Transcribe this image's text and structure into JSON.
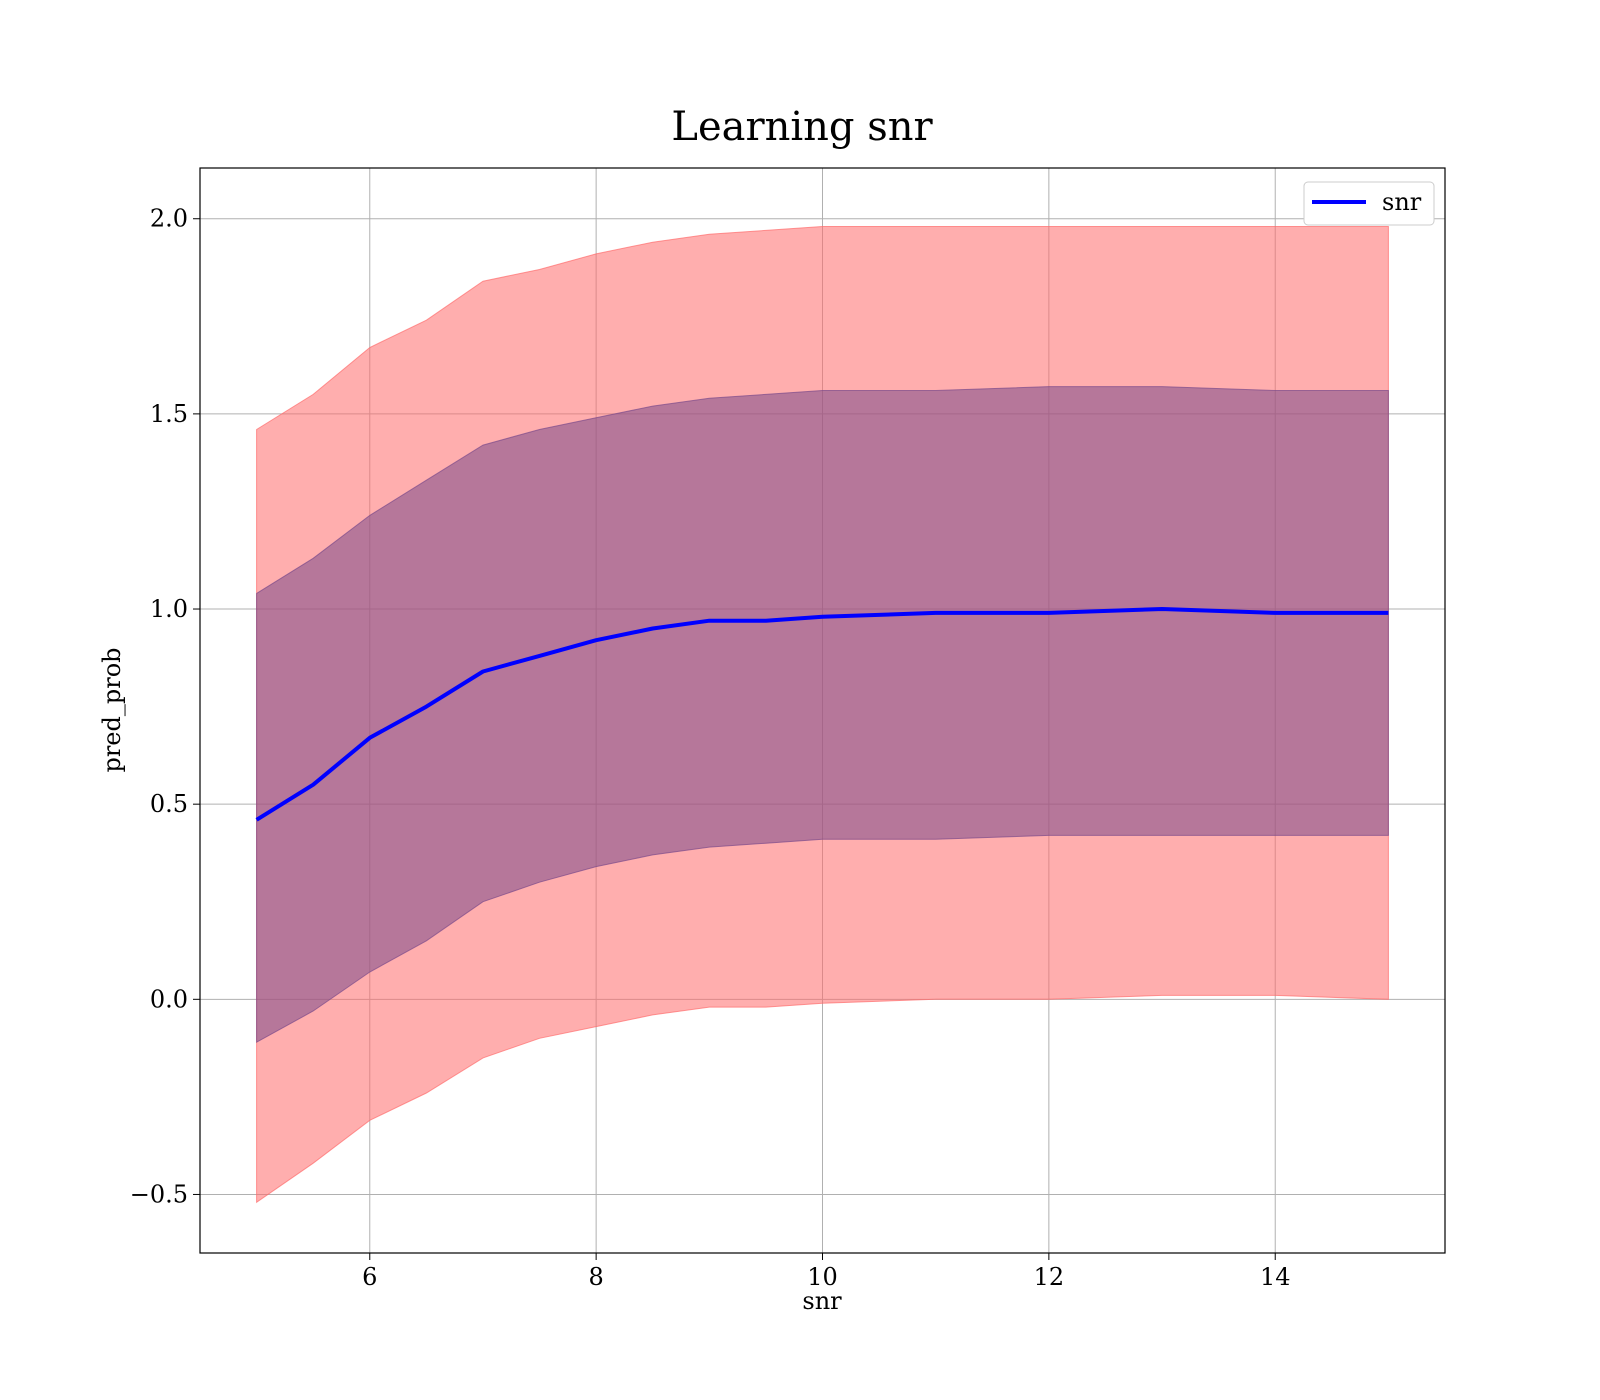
{
  "chart_data": {
    "type": "line",
    "title": "Learning snr",
    "xlabel": "snr",
    "ylabel": "pred_prob",
    "xlim": [
      4.5,
      15.5
    ],
    "ylim": [
      -0.65,
      2.13
    ],
    "xticks": [
      6,
      8,
      10,
      12,
      14
    ],
    "xtick_labels": [
      "6",
      "8",
      "10",
      "12",
      "14"
    ],
    "yticks": [
      -0.5,
      0.0,
      0.5,
      1.0,
      1.5,
      2.0
    ],
    "ytick_labels": [
      "−0.5",
      "0.0",
      "0.5",
      "1.0",
      "1.5",
      "2.0"
    ],
    "grid": true,
    "legend": {
      "position": "top-right",
      "entries": [
        "snr"
      ]
    },
    "x": [
      5.0,
      5.5,
      6.0,
      6.5,
      7.0,
      7.5,
      8.0,
      8.5,
      9.0,
      9.5,
      10.0,
      11.0,
      12.0,
      13.0,
      14.0,
      15.0
    ],
    "series": [
      {
        "name": "snr",
        "color": "#0000ff",
        "values": [
          0.46,
          0.55,
          0.67,
          0.75,
          0.84,
          0.88,
          0.92,
          0.95,
          0.97,
          0.97,
          0.98,
          0.99,
          0.99,
          1.0,
          0.99,
          0.99
        ]
      }
    ],
    "bands": [
      {
        "color": "#ff6b6b",
        "opacity": 0.55,
        "lower": [
          -0.52,
          -0.42,
          -0.31,
          -0.24,
          -0.15,
          -0.1,
          -0.07,
          -0.04,
          -0.02,
          -0.02,
          -0.01,
          0.0,
          0.0,
          0.01,
          0.01,
          0.0
        ],
        "upper": [
          1.46,
          1.55,
          1.67,
          1.74,
          1.84,
          1.87,
          1.91,
          1.94,
          1.96,
          1.97,
          1.98,
          1.98,
          1.98,
          1.98,
          1.98,
          1.98
        ]
      },
      {
        "color": "#7a4a8a",
        "opacity": 0.55,
        "lower": [
          -0.11,
          -0.03,
          0.07,
          0.15,
          0.25,
          0.3,
          0.34,
          0.37,
          0.39,
          0.4,
          0.41,
          0.41,
          0.42,
          0.42,
          0.42,
          0.42
        ],
        "upper": [
          1.04,
          1.13,
          1.24,
          1.33,
          1.42,
          1.46,
          1.49,
          1.52,
          1.54,
          1.55,
          1.56,
          1.56,
          1.57,
          1.57,
          1.56,
          1.56
        ]
      }
    ]
  }
}
